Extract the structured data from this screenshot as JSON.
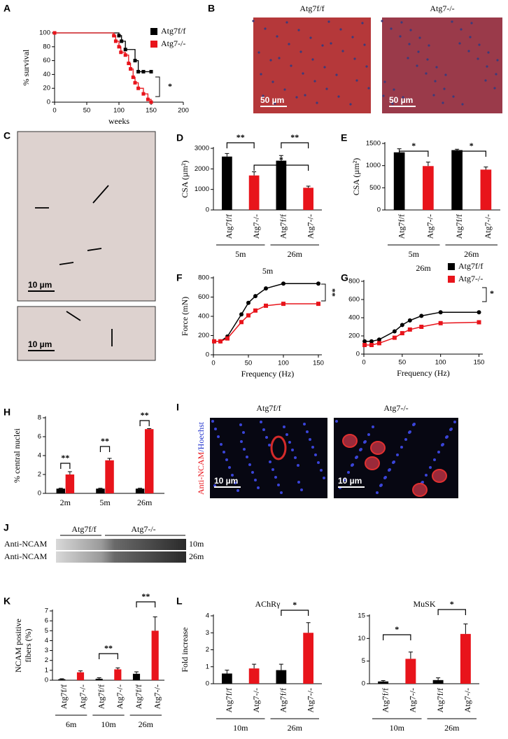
{
  "chart_data": [
    {
      "type": "step",
      "label": "A",
      "xlabel": "weeks",
      "ylabel": "% survival",
      "xlim": [
        0,
        200
      ],
      "xticks": [
        0,
        50,
        100,
        150,
        200
      ],
      "ylim": [
        0,
        100
      ],
      "yticks": [
        0,
        20,
        40,
        60,
        80,
        100
      ],
      "legend": "top-right",
      "annotations": [
        "*"
      ],
      "series": [
        {
          "name": "Atg7f/f",
          "color": "#000000",
          "x": [
            0,
            100,
            104,
            110,
            125,
            130,
            138,
            150
          ],
          "values": [
            100,
            96,
            88,
            76,
            60,
            44,
            44,
            44
          ]
        },
        {
          "name": "Atg7-/-",
          "color": "#e8141b",
          "x": [
            0,
            92,
            95,
            100,
            103,
            110,
            115,
            118,
            122,
            125,
            130,
            138,
            145,
            150
          ],
          "values": [
            100,
            96,
            88,
            80,
            72,
            68,
            56,
            48,
            36,
            28,
            20,
            12,
            4,
            0
          ]
        }
      ]
    },
    {
      "type": "bar",
      "label": "D",
      "ylabel": "CSA (µm²)",
      "ylim": [
        0,
        3000
      ],
      "yticks": [
        0,
        1000,
        2000,
        3000
      ],
      "categories": [
        "Atg7f/f",
        "Atg7-/-",
        "Atg7f/f",
        "Atg7-/-"
      ],
      "groups": [
        "5m",
        "26m"
      ],
      "values": [
        2600,
        1680,
        2400,
        1080
      ],
      "errors": [
        150,
        180,
        250,
        80
      ],
      "colors": [
        "#000000",
        "#e8141b",
        "#000000",
        "#e8141b"
      ],
      "annotations": [
        "**",
        "*",
        "**"
      ]
    },
    {
      "type": "bar",
      "label": "E",
      "ylabel": "CSA (µm²)",
      "ylim": [
        0,
        1500
      ],
      "yticks": [
        0,
        500,
        1000,
        1500
      ],
      "categories": [
        "Atg7f/f",
        "Atg7-/-",
        "Atg7f/f",
        "Atg7-/-"
      ],
      "groups": [
        "5m",
        "26m"
      ],
      "values": [
        1300,
        990,
        1350,
        910
      ],
      "errors": [
        80,
        90,
        20,
        60
      ],
      "colors": [
        "#000000",
        "#e8141b",
        "#000000",
        "#e8141b"
      ],
      "annotations": [
        "*",
        "*"
      ]
    },
    {
      "type": "line",
      "label": "F",
      "title": "5m",
      "xlabel": "Frequency (Hz)",
      "ylabel": "Force (mN)",
      "xlim": [
        0,
        155
      ],
      "xticks": [
        0,
        50,
        100,
        150
      ],
      "ylim": [
        0,
        800
      ],
      "yticks": [
        0,
        200,
        400,
        600,
        800
      ],
      "x": [
        1,
        10,
        20,
        40,
        50,
        60,
        75,
        100,
        150
      ],
      "annotations": [
        "**"
      ],
      "series": [
        {
          "color": "#000000",
          "values": [
            140,
            140,
            190,
            420,
            540,
            610,
            690,
            740,
            740
          ]
        },
        {
          "color": "#e8141b",
          "values": [
            140,
            140,
            170,
            340,
            410,
            460,
            510,
            530,
            530
          ]
        }
      ]
    },
    {
      "type": "line",
      "label": "G",
      "title": "26m",
      "xlabel": "Frequency (Hz)",
      "xlim": [
        0,
        155
      ],
      "xticks": [
        0,
        50,
        100,
        150
      ],
      "ylim": [
        0,
        800
      ],
      "yticks": [
        0,
        200,
        400,
        600,
        800
      ],
      "x": [
        1,
        10,
        20,
        40,
        50,
        60,
        75,
        100,
        150
      ],
      "legend": "top-right",
      "annotations": [
        "*"
      ],
      "series": [
        {
          "name": "Atg7f/f",
          "color": "#000000",
          "values": [
            140,
            140,
            160,
            250,
            320,
            370,
            420,
            460,
            460
          ]
        },
        {
          "name": "Atg7-/-",
          "color": "#e8141b",
          "values": [
            100,
            100,
            120,
            180,
            230,
            270,
            300,
            340,
            350
          ]
        }
      ]
    },
    {
      "type": "bar",
      "label": "H",
      "ylabel": "% central nuclei",
      "ylim": [
        0,
        8
      ],
      "yticks": [
        0,
        2,
        4,
        6,
        8
      ],
      "categories": [
        "2m",
        "5m",
        "26m"
      ],
      "annotations": [
        "**",
        "**",
        "**"
      ],
      "series": [
        {
          "color": "#000000",
          "values": [
            0.5,
            0.5,
            0.5
          ],
          "errors": [
            0.05,
            0.05,
            0.05
          ]
        },
        {
          "color": "#e8141b",
          "values": [
            2,
            3.5,
            6.8
          ],
          "errors": [
            0.3,
            0.2,
            0.05
          ]
        }
      ]
    },
    {
      "type": "bar",
      "label": "K",
      "ylabel": [
        "NCAM positive",
        "fibers (%)"
      ],
      "ylim": [
        0,
        7
      ],
      "yticks": [
        0,
        1,
        2,
        3,
        4,
        5,
        6,
        7
      ],
      "categories": [
        "Atg7f/f",
        "Atg7-/-",
        "Atg7f/f",
        "Atg7-/-",
        "Atg7f/f",
        "Atg7-/-"
      ],
      "groups": [
        "6m",
        "10m",
        "26m"
      ],
      "values": [
        0.1,
        0.8,
        0.15,
        1.1,
        0.65,
        5.0
      ],
      "errors": [
        0.05,
        0.15,
        0.1,
        0.15,
        0.2,
        1.4
      ],
      "colors": [
        "#000000",
        "#e8141b",
        "#000000",
        "#e8141b",
        "#000000",
        "#e8141b"
      ],
      "annotations": [
        "**",
        "**"
      ]
    },
    {
      "type": "bar",
      "label": "L",
      "title": "AChRγ",
      "ylabel": "Fold increase",
      "ylim": [
        0,
        4
      ],
      "yticks": [
        0,
        1,
        2,
        3,
        4
      ],
      "categories": [
        "Atg7f/f",
        "Atg7-/-",
        "Atg7f/f",
        "Atg7-/-"
      ],
      "groups": [
        "10m",
        "26m"
      ],
      "values": [
        0.6,
        0.9,
        0.8,
        3.0
      ],
      "errors": [
        0.2,
        0.25,
        0.35,
        0.6
      ],
      "colors": [
        "#000000",
        "#e8141b",
        "#000000",
        "#e8141b"
      ],
      "annotations": [
        "*"
      ]
    },
    {
      "type": "bar",
      "title": "MuSK",
      "ylim": [
        0,
        15
      ],
      "yticks": [
        0,
        5,
        10,
        15
      ],
      "categories": [
        "Atg7f/f",
        "Atg7-/-",
        "Atg7f/f",
        "Atg7-/-"
      ],
      "groups": [
        "10m",
        "26m"
      ],
      "values": [
        0.5,
        5.5,
        0.8,
        11
      ],
      "errors": [
        0.2,
        1.5,
        0.5,
        2.2
      ],
      "colors": [
        "#000000",
        "#e8141b",
        "#000000",
        "#e8141b"
      ],
      "annotations": [
        "*",
        "*"
      ]
    }
  ],
  "images": [
    {
      "label": "B",
      "titles": [
        "Atg7f/f",
        "Atg7-/-"
      ],
      "scale_bars": [
        "50 µm",
        "50 µm"
      ]
    },
    {
      "label": "C",
      "scale_bars": [
        "10 µm",
        "10 µm"
      ]
    },
    {
      "label": "I",
      "titles": [
        "Atg7f/f",
        "Atg7-/-"
      ],
      "stain_label": [
        "Anti-NCAM",
        "/Hoechst"
      ],
      "scale_bars": [
        "10 µm",
        "10 µm"
      ]
    },
    {
      "label": "J",
      "titles": [
        "Atg7f/f",
        "Atg7-/-"
      ],
      "rows": [
        "Anti-NCAM",
        "Anti-NCAM"
      ],
      "ages": [
        "10m",
        "26m"
      ]
    }
  ]
}
